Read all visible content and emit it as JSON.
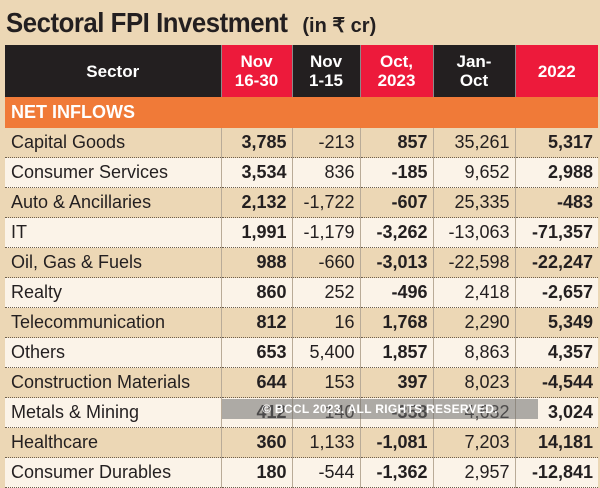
{
  "title": {
    "main": "Sectoral FPI Investment",
    "unit": "(in ₹ cr)"
  },
  "header": {
    "sector": "Sector",
    "columns": [
      "Nov\n16-30",
      "Nov\n1-15",
      "Oct,\n2023",
      "Jan-\nOct",
      "2022"
    ],
    "column_lines": [
      [
        "Nov",
        "16-30"
      ],
      [
        "Nov",
        "1-15"
      ],
      [
        "Oct,",
        "2023"
      ],
      [
        "Jan-",
        "Oct"
      ],
      [
        "2022"
      ]
    ]
  },
  "section_label": "NET INFLOWS",
  "rows": [
    {
      "sector": "Capital Goods",
      "values": [
        "3,785",
        "-213",
        "857",
        "35,261",
        "5,317"
      ]
    },
    {
      "sector": "Consumer Services",
      "values": [
        "3,534",
        "836",
        "-185",
        "9,652",
        "2,988"
      ]
    },
    {
      "sector": "Auto & Ancillaries",
      "values": [
        "2,132",
        "-1,722",
        "-607",
        "25,335",
        "-483"
      ]
    },
    {
      "sector": "IT",
      "values": [
        "1,991",
        "-1,179",
        "-3,262",
        "-13,063",
        "-71,357"
      ]
    },
    {
      "sector": "Oil, Gas & Fuels",
      "values": [
        "988",
        "-660",
        "-3,013",
        "-22,598",
        "-22,247"
      ]
    },
    {
      "sector": "Realty",
      "values": [
        "860",
        "252",
        "-496",
        "2,418",
        "-2,657"
      ]
    },
    {
      "sector": "Telecommunication",
      "values": [
        "812",
        "16",
        "1,768",
        "2,290",
        "5,349"
      ]
    },
    {
      "sector": "Others",
      "values": [
        "653",
        "5,400",
        "1,857",
        "8,863",
        "4,357"
      ]
    },
    {
      "sector": "Construction Materials",
      "values": [
        "644",
        "153",
        "397",
        "8,023",
        "-4,544"
      ]
    },
    {
      "sector": "Metals & Mining",
      "values": [
        "412",
        "140",
        "-358",
        "4,632",
        "3,024"
      ]
    },
    {
      "sector": "Healthcare",
      "values": [
        "360",
        "1,133",
        "-1,081",
        "7,203",
        "14,181"
      ]
    },
    {
      "sector": "Consumer Durables",
      "values": [
        "180",
        "-544",
        "-1,362",
        "2,957",
        "-12,841"
      ]
    }
  ],
  "watermark": "© BCCL 2023. ALL RIGHTS RESERVED.",
  "colors": {
    "header_dark": "#231f20",
    "header_red": "#ed1a3b",
    "section": "#f07a38",
    "background": "#ecd7b5",
    "row_light": "#fbf3e8"
  }
}
